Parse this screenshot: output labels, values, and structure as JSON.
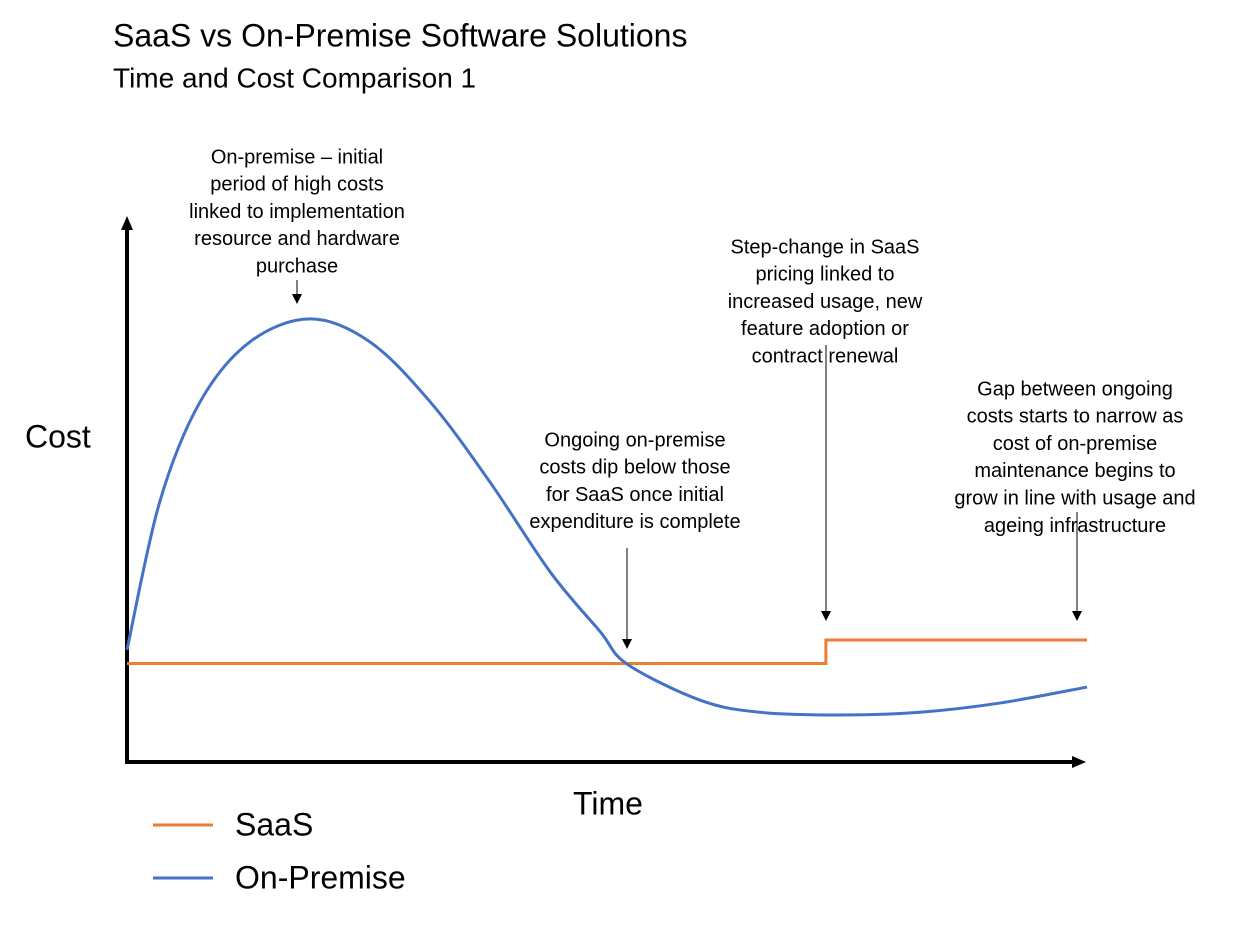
{
  "chart_data": {
    "type": "line",
    "title": "SaaS vs On-Premise Software Solutions",
    "subtitle": "Time and Cost Comparison 1",
    "x_label": "Time",
    "y_label": "Cost",
    "xlim": [
      0,
      100
    ],
    "ylim": [
      0,
      100
    ],
    "series": [
      {
        "name": "SaaS",
        "color": "#ed7d31",
        "smooth": false,
        "x": [
          0,
          72.8,
          72.8,
          100
        ],
        "values": [
          18,
          18,
          22.3,
          22.3
        ]
      },
      {
        "name": "On-Premise",
        "color": "#4472c4",
        "smooth": true,
        "x": [
          0,
          3.4,
          7.6,
          12.8,
          19.1,
          25.3,
          31.6,
          37.8,
          44.1,
          49.3,
          52.1,
          59.7,
          65.9,
          74.3,
          82.6,
          91.0,
          100
        ],
        "values": [
          20.5,
          47.5,
          65.8,
          76.8,
          81.0,
          76.8,
          65.8,
          51.2,
          34.7,
          23.8,
          17.9,
          11.3,
          9.1,
          8.6,
          9.1,
          10.8,
          13.7
        ]
      }
    ],
    "annotations": [
      [
        "On-premise – initial",
        "period of high costs",
        "linked to implementation",
        "resource and hardware",
        "purchase"
      ],
      [
        "Ongoing on-premise",
        "costs dip below those",
        "for SaaS once initial",
        "expenditure is complete"
      ],
      [
        "Step-change in SaaS",
        "pricing linked to",
        "increased usage, new",
        "feature adoption or",
        "contract renewal"
      ],
      [
        "Gap between ongoing",
        "costs starts to narrow as",
        "cost of on-premise",
        "maintenance begins to",
        "grow in line with usage and",
        "ageing infrastructure"
      ]
    ]
  }
}
